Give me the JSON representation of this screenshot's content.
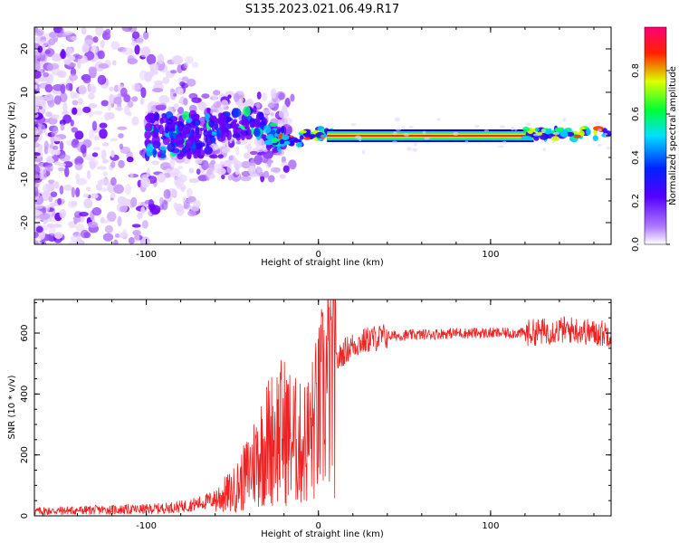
{
  "title": "S135.2023.021.06.49.R17",
  "chart_data": [
    {
      "type": "heatmap",
      "xlabel": "Height of straight line (km)",
      "ylabel": "Frequency (Hz)",
      "xlim": [
        -165,
        170
      ],
      "ylim": [
        -25,
        25
      ],
      "xticks": [
        -100,
        0,
        100
      ],
      "yticks": [
        -20,
        -10,
        0,
        10,
        20
      ],
      "colorbar": {
        "label": "Normalized spectral amplitude",
        "range": [
          0,
          1
        ],
        "ticks": [
          "0.0",
          "0.2",
          "0.4",
          "0.6",
          "0.8"
        ],
        "colormap": [
          "#ffffff",
          "#7f00ff",
          "#0000ff",
          "#00ffff",
          "#00ff00",
          "#ffff00",
          "#ff0000",
          "#ff0080"
        ]
      },
      "description_points": [
        {
          "x": -100,
          "band_center": 0,
          "spread": 25
        },
        {
          "x": -50,
          "band_center": 2,
          "spread": 8
        },
        {
          "x": -20,
          "band_center": -2,
          "spread": 3
        },
        {
          "x": 0,
          "band_center": 0.5,
          "spread": 1
        },
        {
          "x": 10,
          "band_center": 0,
          "spread": 0.5
        },
        {
          "x": 120,
          "band_center": 0,
          "spread": 0.5
        },
        {
          "x": 170,
          "band_center": 1,
          "spread": 1
        }
      ]
    },
    {
      "type": "line",
      "xlabel": "Height of straight line (km)",
      "ylabel": "SNR (10 * v/v)",
      "xlim": [
        -165,
        170
      ],
      "ylim": [
        0,
        710
      ],
      "xticks": [
        -100,
        0,
        100
      ],
      "yticks": [
        0,
        200,
        400,
        600
      ],
      "color": "#ee2222",
      "series": [
        {
          "x": [
            -165,
            -140,
            -120,
            -100,
            -90,
            -80,
            -70,
            -60,
            -50,
            -45,
            -40,
            -35,
            -30,
            -25,
            -20,
            -15,
            -10,
            -5,
            0,
            5,
            10,
            15,
            20,
            30,
            40,
            60,
            80,
            100,
            120,
            130,
            140,
            150,
            160,
            170
          ],
          "values": [
            15,
            18,
            20,
            22,
            25,
            30,
            40,
            55,
            80,
            110,
            150,
            200,
            240,
            270,
            280,
            250,
            230,
            260,
            330,
            430,
            500,
            540,
            560,
            580,
            590,
            595,
            600,
            600,
            600,
            605,
            610,
            610,
            600,
            600
          ]
        }
      ]
    }
  ]
}
